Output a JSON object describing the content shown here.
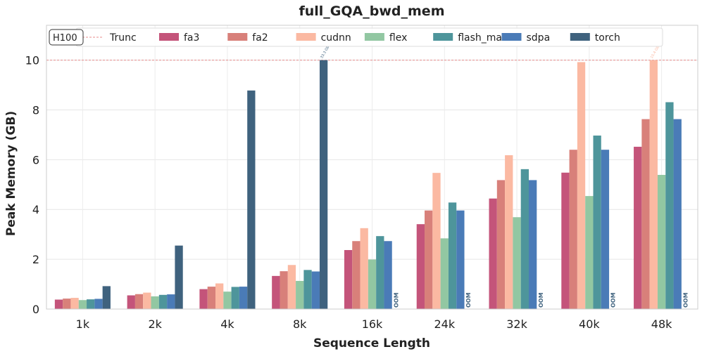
{
  "chart_data": {
    "type": "bar",
    "title": "full_GQA_bwd_mem",
    "xlabel": "Sequence Length",
    "ylabel": "Peak Memory (GB)",
    "ylim": [
      0,
      11.4
    ],
    "yticks": [
      0,
      2,
      4,
      6,
      8,
      10
    ],
    "grid": true,
    "legend_position": "top",
    "hardware_badge": "H100",
    "truncation": {
      "label": "Trunc",
      "value": 10,
      "color": "#e88e8e"
    },
    "categories": [
      "1k",
      "2k",
      "4k",
      "8k",
      "16k",
      "24k",
      "32k",
      "40k",
      "48k"
    ],
    "oom_label": "OOM",
    "series": [
      {
        "name": "fa3",
        "color": "#c4547a",
        "values": [
          0.38,
          0.55,
          0.8,
          1.33,
          2.37,
          3.41,
          4.44,
          5.48,
          6.52
        ]
      },
      {
        "name": "fa2",
        "color": "#d8807a",
        "values": [
          0.42,
          0.6,
          0.9,
          1.52,
          2.73,
          3.96,
          5.18,
          6.4,
          7.63
        ]
      },
      {
        "name": "cudnn",
        "color": "#fbb9a2",
        "values": [
          0.45,
          0.66,
          1.03,
          1.77,
          3.25,
          5.47,
          6.18,
          9.92,
          10.0
        ]
      },
      {
        "name": "flex",
        "color": "#92c7a2",
        "values": [
          0.36,
          0.51,
          0.7,
          1.13,
          1.99,
          2.84,
          3.69,
          4.54,
          5.39
        ]
      },
      {
        "name": "flash_mask",
        "color": "#4e959b",
        "values": [
          0.39,
          0.57,
          0.89,
          1.57,
          2.93,
          4.28,
          5.62,
          6.97,
          8.31
        ]
      },
      {
        "name": "sdpa",
        "color": "#4a7bb7",
        "values": [
          0.41,
          0.59,
          0.9,
          1.51,
          2.73,
          3.96,
          5.18,
          6.4,
          7.63
        ]
      },
      {
        "name": "torch",
        "color": "#3f627e",
        "values": [
          0.92,
          2.55,
          8.78,
          10.0,
          null,
          null,
          null,
          null,
          null
        ]
      }
    ],
    "bar_annotations": [
      {
        "series": "torch",
        "category": "8k",
        "text": "33.3 GB"
      },
      {
        "series": "cudnn",
        "category": "48k",
        "text": "10.4 GB"
      }
    ]
  }
}
